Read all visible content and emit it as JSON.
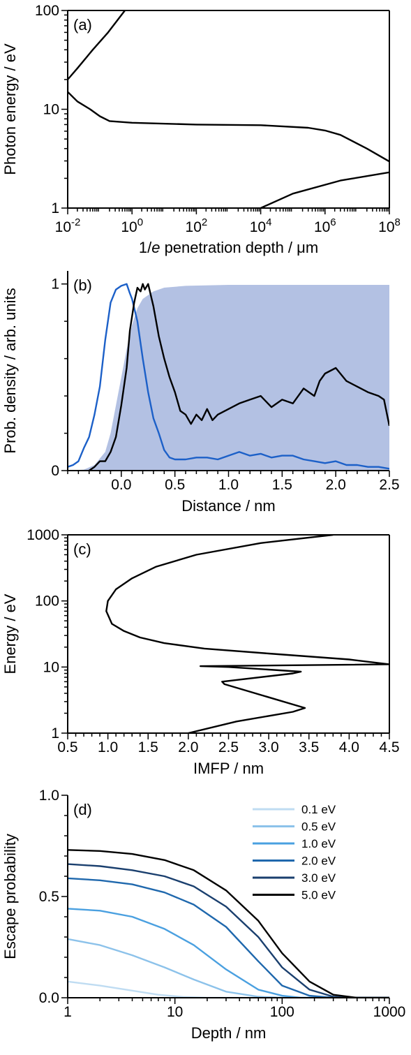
{
  "chart_data": [
    {
      "type": "line",
      "panel_label": "(a)",
      "xlabel_pre": "1/",
      "xlabel_italic": "e",
      "xlabel_post": " penetration depth / μm",
      "ylabel": "Photon energy / eV",
      "xscale": "log",
      "yscale": "log",
      "xlim": [
        0.01,
        100000000
      ],
      "ylim": [
        1,
        100
      ],
      "xticks": [
        {
          "value": 0.01,
          "base": "10",
          "exp": "-2"
        },
        {
          "value": 1,
          "base": "10",
          "exp": "0"
        },
        {
          "value": 100,
          "base": "10",
          "exp": "2"
        },
        {
          "value": 10000,
          "base": "10",
          "exp": "4"
        },
        {
          "value": 1000000,
          "base": "10",
          "exp": "6"
        },
        {
          "value": 100000000,
          "base": "10",
          "exp": "8"
        }
      ],
      "yticks": [
        {
          "value": 1,
          "label": "1"
        },
        {
          "value": 10,
          "label": "10"
        },
        {
          "value": 100,
          "label": "100"
        }
      ],
      "series": [
        {
          "color": "#000000",
          "points": [
            [
              0.6,
              100
            ],
            [
              0.18,
              60
            ],
            [
              0.06,
              40
            ],
            [
              0.02,
              26
            ],
            [
              0.01,
              20
            ],
            [
              0.01,
              15
            ],
            [
              0.02,
              12
            ],
            [
              0.05,
              10
            ],
            [
              0.1,
              8.5
            ],
            [
              0.2,
              7.6
            ],
            [
              1,
              7.3
            ],
            [
              100,
              7.0
            ],
            [
              10000,
              6.9
            ],
            [
              300000,
              6.5
            ],
            [
              1000000,
              6.1
            ],
            [
              3000000,
              5.5
            ],
            [
              20000000,
              4.0
            ],
            [
              200000000,
              2.6
            ],
            [
              100000000,
              2.3
            ],
            [
              3000000,
              1.9
            ],
            [
              100000,
              1.4
            ],
            [
              10000,
              1.0
            ]
          ]
        }
      ]
    },
    {
      "type": "area",
      "panel_label": "(b)",
      "xlabel": "Distance / nm",
      "ylabel": "Prob. density / arb. units",
      "xlim": [
        -0.5,
        2.5
      ],
      "ylim": [
        0,
        1.07
      ],
      "xticks": [
        {
          "value": 0.0,
          "label": "0.0"
        },
        {
          "value": 0.5,
          "label": "0.5"
        },
        {
          "value": 1.0,
          "label": "1.0"
        },
        {
          "value": 1.5,
          "label": "1.5"
        },
        {
          "value": 2.0,
          "label": "2.0"
        },
        {
          "value": 2.5,
          "label": "2.5"
        }
      ],
      "yticks": [
        {
          "value": 0,
          "label": "0"
        },
        {
          "value": 1,
          "label": "1"
        }
      ],
      "area": {
        "color": "#b3c1e3",
        "points": [
          [
            -0.5,
            0
          ],
          [
            -0.35,
            0.005
          ],
          [
            -0.25,
            0.03
          ],
          [
            -0.15,
            0.1
          ],
          [
            -0.1,
            0.2
          ],
          [
            -0.05,
            0.35
          ],
          [
            0.0,
            0.5
          ],
          [
            0.05,
            0.65
          ],
          [
            0.1,
            0.78
          ],
          [
            0.15,
            0.87
          ],
          [
            0.2,
            0.92
          ],
          [
            0.3,
            0.96
          ],
          [
            0.4,
            0.98
          ],
          [
            0.6,
            0.99
          ],
          [
            1.0,
            0.995
          ],
          [
            2.5,
            0.995
          ]
        ]
      },
      "series": [
        {
          "color": "#1c60c8",
          "points": [
            [
              -0.5,
              0.02
            ],
            [
              -0.45,
              0.03
            ],
            [
              -0.4,
              0.05
            ],
            [
              -0.35,
              0.12
            ],
            [
              -0.3,
              0.18
            ],
            [
              -0.25,
              0.3
            ],
            [
              -0.2,
              0.45
            ],
            [
              -0.15,
              0.7
            ],
            [
              -0.1,
              0.9
            ],
            [
              -0.05,
              0.97
            ],
            [
              0.0,
              0.99
            ],
            [
              0.05,
              1.0
            ],
            [
              0.08,
              0.95
            ],
            [
              0.1,
              0.92
            ],
            [
              0.15,
              0.8
            ],
            [
              0.2,
              0.6
            ],
            [
              0.25,
              0.42
            ],
            [
              0.3,
              0.28
            ],
            [
              0.35,
              0.2
            ],
            [
              0.4,
              0.11
            ],
            [
              0.45,
              0.07
            ],
            [
              0.5,
              0.06
            ],
            [
              0.6,
              0.06
            ],
            [
              0.7,
              0.07
            ],
            [
              0.8,
              0.07
            ],
            [
              0.9,
              0.06
            ],
            [
              1.0,
              0.08
            ],
            [
              1.1,
              0.1
            ],
            [
              1.2,
              0.08
            ],
            [
              1.3,
              0.09
            ],
            [
              1.4,
              0.07
            ],
            [
              1.5,
              0.08
            ],
            [
              1.6,
              0.08
            ],
            [
              1.7,
              0.06
            ],
            [
              1.8,
              0.05
            ],
            [
              1.9,
              0.04
            ],
            [
              2.0,
              0.05
            ],
            [
              2.1,
              0.03
            ],
            [
              2.2,
              0.03
            ],
            [
              2.3,
              0.02
            ],
            [
              2.4,
              0.02
            ],
            [
              2.5,
              0.01
            ]
          ]
        },
        {
          "color": "#000000",
          "points": [
            [
              -0.3,
              0.0
            ],
            [
              -0.25,
              0.02
            ],
            [
              -0.2,
              0.05
            ],
            [
              -0.15,
              0.05
            ],
            [
              -0.1,
              0.1
            ],
            [
              -0.05,
              0.18
            ],
            [
              0.0,
              0.35
            ],
            [
              0.05,
              0.55
            ],
            [
              0.08,
              0.75
            ],
            [
              0.12,
              0.9
            ],
            [
              0.15,
              0.98
            ],
            [
              0.18,
              0.96
            ],
            [
              0.2,
              1.0
            ],
            [
              0.22,
              0.97
            ],
            [
              0.25,
              1.0
            ],
            [
              0.3,
              0.88
            ],
            [
              0.35,
              0.72
            ],
            [
              0.4,
              0.6
            ],
            [
              0.45,
              0.5
            ],
            [
              0.5,
              0.42
            ],
            [
              0.55,
              0.32
            ],
            [
              0.6,
              0.3
            ],
            [
              0.65,
              0.25
            ],
            [
              0.7,
              0.3
            ],
            [
              0.75,
              0.27
            ],
            [
              0.8,
              0.33
            ],
            [
              0.85,
              0.27
            ],
            [
              0.9,
              0.3
            ],
            [
              1.0,
              0.33
            ],
            [
              1.1,
              0.36
            ],
            [
              1.2,
              0.38
            ],
            [
              1.3,
              0.4
            ],
            [
              1.4,
              0.34
            ],
            [
              1.5,
              0.38
            ],
            [
              1.6,
              0.36
            ],
            [
              1.7,
              0.44
            ],
            [
              1.8,
              0.4
            ],
            [
              1.85,
              0.48
            ],
            [
              1.9,
              0.52
            ],
            [
              2.0,
              0.55
            ],
            [
              2.1,
              0.48
            ],
            [
              2.2,
              0.45
            ],
            [
              2.3,
              0.42
            ],
            [
              2.4,
              0.4
            ],
            [
              2.45,
              0.38
            ],
            [
              2.5,
              0.24
            ]
          ]
        }
      ]
    },
    {
      "type": "line",
      "panel_label": "(c)",
      "xlabel": "IMFP / nm",
      "ylabel": "Energy / eV",
      "xscale": "linear",
      "yscale": "log",
      "xlim": [
        0.5,
        4.5
      ],
      "ylim": [
        1,
        1000
      ],
      "xticks": [
        {
          "value": 0.5,
          "label": "0.5"
        },
        {
          "value": 1.0,
          "label": "1.0"
        },
        {
          "value": 1.5,
          "label": "1.5"
        },
        {
          "value": 2.0,
          "label": "2.0"
        },
        {
          "value": 2.5,
          "label": "2.5"
        },
        {
          "value": 3.0,
          "label": "3.0"
        },
        {
          "value": 3.5,
          "label": "3.5"
        },
        {
          "value": 4.0,
          "label": "4.0"
        },
        {
          "value": 4.5,
          "label": "4.5"
        }
      ],
      "yticks": [
        {
          "value": 1,
          "label": "1"
        },
        {
          "value": 10,
          "label": "10"
        },
        {
          "value": 100,
          "label": "100"
        },
        {
          "value": 1000,
          "label": "1000"
        }
      ],
      "series": [
        {
          "color": "#000000",
          "points": [
            [
              2.0,
              1.0
            ],
            [
              2.6,
              1.5
            ],
            [
              3.3,
              2.1
            ],
            [
              3.45,
              2.4
            ],
            [
              2.45,
              5.5
            ],
            [
              2.42,
              6.0
            ],
            [
              3.3,
              8.0
            ],
            [
              3.4,
              8.5
            ],
            [
              2.5,
              10.0
            ],
            [
              2.15,
              10.3
            ],
            [
              4.5,
              11.0
            ],
            [
              4.0,
              13.0
            ],
            [
              3.0,
              16.0
            ],
            [
              2.2,
              19.0
            ],
            [
              1.7,
              23.0
            ],
            [
              1.4,
              28.0
            ],
            [
              1.2,
              35.0
            ],
            [
              1.05,
              45.0
            ],
            [
              0.98,
              70.0
            ],
            [
              1.0,
              100.0
            ],
            [
              1.1,
              150.0
            ],
            [
              1.3,
              220.0
            ],
            [
              1.6,
              330.0
            ],
            [
              2.1,
              500.0
            ],
            [
              2.9,
              750.0
            ],
            [
              3.8,
              1000.0
            ]
          ]
        }
      ]
    },
    {
      "type": "line",
      "panel_label": "(d)",
      "xlabel": "Depth / nm",
      "ylabel": "Escape probability",
      "xscale": "log",
      "yscale": "linear",
      "xlim": [
        1,
        1000
      ],
      "ylim": [
        0,
        1.0
      ],
      "xticks": [
        {
          "value": 1,
          "label": "1"
        },
        {
          "value": 10,
          "label": "10"
        },
        {
          "value": 100,
          "label": "100"
        },
        {
          "value": 1000,
          "label": "1000"
        }
      ],
      "yticks": [
        {
          "value": 0.0,
          "label": "0.0"
        },
        {
          "value": 0.5,
          "label": "0.5"
        },
        {
          "value": 1.0,
          "label": "1.0"
        }
      ],
      "legend_position": "top-right",
      "series": [
        {
          "name": "0.1 eV",
          "color": "#bfdcf2",
          "points": [
            [
              1,
              0.08
            ],
            [
              2,
              0.06
            ],
            [
              4,
              0.035
            ],
            [
              7,
              0.015
            ],
            [
              12,
              0.004
            ],
            [
              20,
              0.0
            ],
            [
              1000,
              0.0
            ]
          ]
        },
        {
          "name": "0.5 eV",
          "color": "#8cc2ea",
          "points": [
            [
              1,
              0.29
            ],
            [
              2,
              0.26
            ],
            [
              4,
              0.21
            ],
            [
              8,
              0.15
            ],
            [
              15,
              0.09
            ],
            [
              30,
              0.03
            ],
            [
              60,
              0.005
            ],
            [
              100,
              0.0
            ],
            [
              1000,
              0.0
            ]
          ]
        },
        {
          "name": "1.0 eV",
          "color": "#4aa0e0",
          "points": [
            [
              1,
              0.44
            ],
            [
              2,
              0.43
            ],
            [
              4,
              0.4
            ],
            [
              8,
              0.34
            ],
            [
              15,
              0.26
            ],
            [
              30,
              0.14
            ],
            [
              60,
              0.04
            ],
            [
              100,
              0.01
            ],
            [
              150,
              0.0
            ],
            [
              1000,
              0.0
            ]
          ]
        },
        {
          "name": "2.0 eV",
          "color": "#1f68ad",
          "points": [
            [
              1,
              0.59
            ],
            [
              2,
              0.58
            ],
            [
              4,
              0.56
            ],
            [
              8,
              0.52
            ],
            [
              15,
              0.46
            ],
            [
              30,
              0.35
            ],
            [
              60,
              0.18
            ],
            [
              100,
              0.06
            ],
            [
              180,
              0.01
            ],
            [
              300,
              0.0
            ],
            [
              1000,
              0.0
            ]
          ]
        },
        {
          "name": "3.0 eV",
          "color": "#1a3f6e",
          "points": [
            [
              1,
              0.66
            ],
            [
              2,
              0.65
            ],
            [
              4,
              0.63
            ],
            [
              8,
              0.6
            ],
            [
              15,
              0.55
            ],
            [
              30,
              0.45
            ],
            [
              60,
              0.3
            ],
            [
              100,
              0.15
            ],
            [
              180,
              0.04
            ],
            [
              300,
              0.005
            ],
            [
              400,
              0.0
            ],
            [
              1000,
              0.0
            ]
          ]
        },
        {
          "name": "5.0 eV",
          "color": "#000000",
          "points": [
            [
              1,
              0.73
            ],
            [
              2,
              0.725
            ],
            [
              4,
              0.71
            ],
            [
              8,
              0.68
            ],
            [
              15,
              0.63
            ],
            [
              30,
              0.53
            ],
            [
              60,
              0.38
            ],
            [
              100,
              0.22
            ],
            [
              180,
              0.08
            ],
            [
              300,
              0.015
            ],
            [
              500,
              0.0
            ],
            [
              1000,
              0.0
            ]
          ]
        }
      ]
    }
  ]
}
